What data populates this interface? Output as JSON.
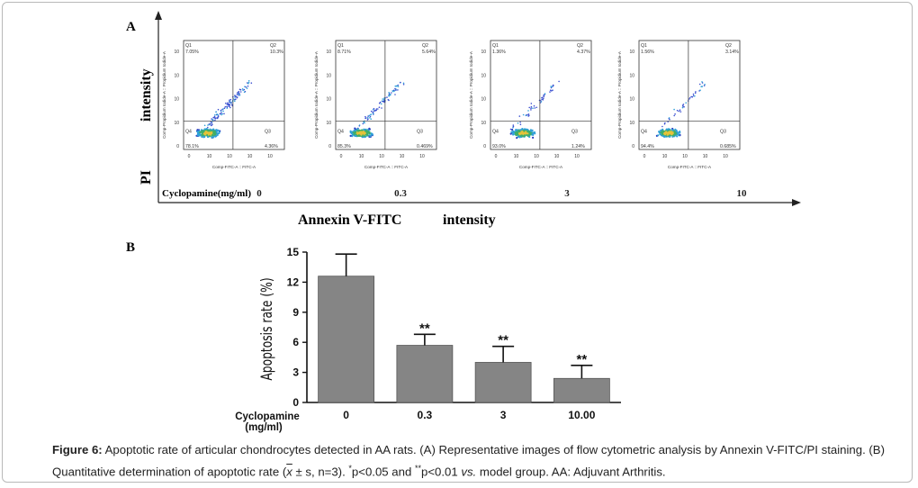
{
  "panel_a": {
    "label": "A",
    "y_axis_title_line1": "intensity",
    "y_axis_title_line2": "PI",
    "x_axis_title_part1": "Annexin V-FITC",
    "x_axis_title_part2": "intensity",
    "treatment_label": "Cyclopamine(mg/ml)",
    "plot_y_label": "Comp-Propidium Iodide-A :: Propidium Iodide-A",
    "plot_x_label": "Comp-FITC-A :: FITC-A",
    "x_ticks": [
      "0",
      "10",
      "10",
      "10",
      "10"
    ],
    "y_ticks": [
      "10",
      "10",
      "10",
      "10",
      "0"
    ],
    "plots": [
      {
        "dose": "0",
        "q1": "7.05%",
        "q2": "10.3%",
        "q3": "4.36%",
        "q4": "78.1%"
      },
      {
        "dose": "0.3",
        "q1": "8.71%",
        "q2": "5.64%",
        "q3": "0.469%",
        "q4": "85.3%"
      },
      {
        "dose": "3",
        "q1": "1.36%",
        "q2": "4.37%",
        "q3": "1.24%",
        "q4": "93.0%"
      },
      {
        "dose": "10",
        "q1": "1.56%",
        "q2": "3.14%",
        "q3": "0.685%",
        "q4": "94.4%"
      }
    ],
    "quadrant_names": [
      "Q1",
      "Q2",
      "Q3",
      "Q4"
    ]
  },
  "chart_data": {
    "type": "bar",
    "panel_label": "B",
    "categories": [
      "0",
      "0.3",
      "3",
      "10.00"
    ],
    "values": [
      12.6,
      5.7,
      4.0,
      2.4
    ],
    "error": [
      2.2,
      1.1,
      1.6,
      1.3
    ],
    "significance": [
      "",
      "**",
      "**",
      "**"
    ],
    "ylabel": "Apoptosis rate (%)",
    "xlabel_line1": "Cyclopamine",
    "xlabel_line2": "(mg/ml)",
    "yticks": [
      "0",
      "3",
      "6",
      "9",
      "12",
      "15"
    ],
    "ylim": [
      0,
      15
    ],
    "bar_color": "#858585"
  },
  "caption": {
    "figure_label": "Figure 6:",
    "text1": " Apoptotic rate of articular chondrocytes detected in AA rats. (A) Representative images of flow cytometric analysis by Annexin V-FITC/PI staining. (B) Quantitative determination of apoptotic rate (",
    "xbar": "x",
    "text2": " ± s, n=3). ",
    "sig1": "*",
    "text3": "p<0.05 and ",
    "sig2": "**",
    "text4": "p<0.01 ",
    "vs": "vs.",
    "text5": " model group. AA: Adjuvant Arthritis."
  }
}
